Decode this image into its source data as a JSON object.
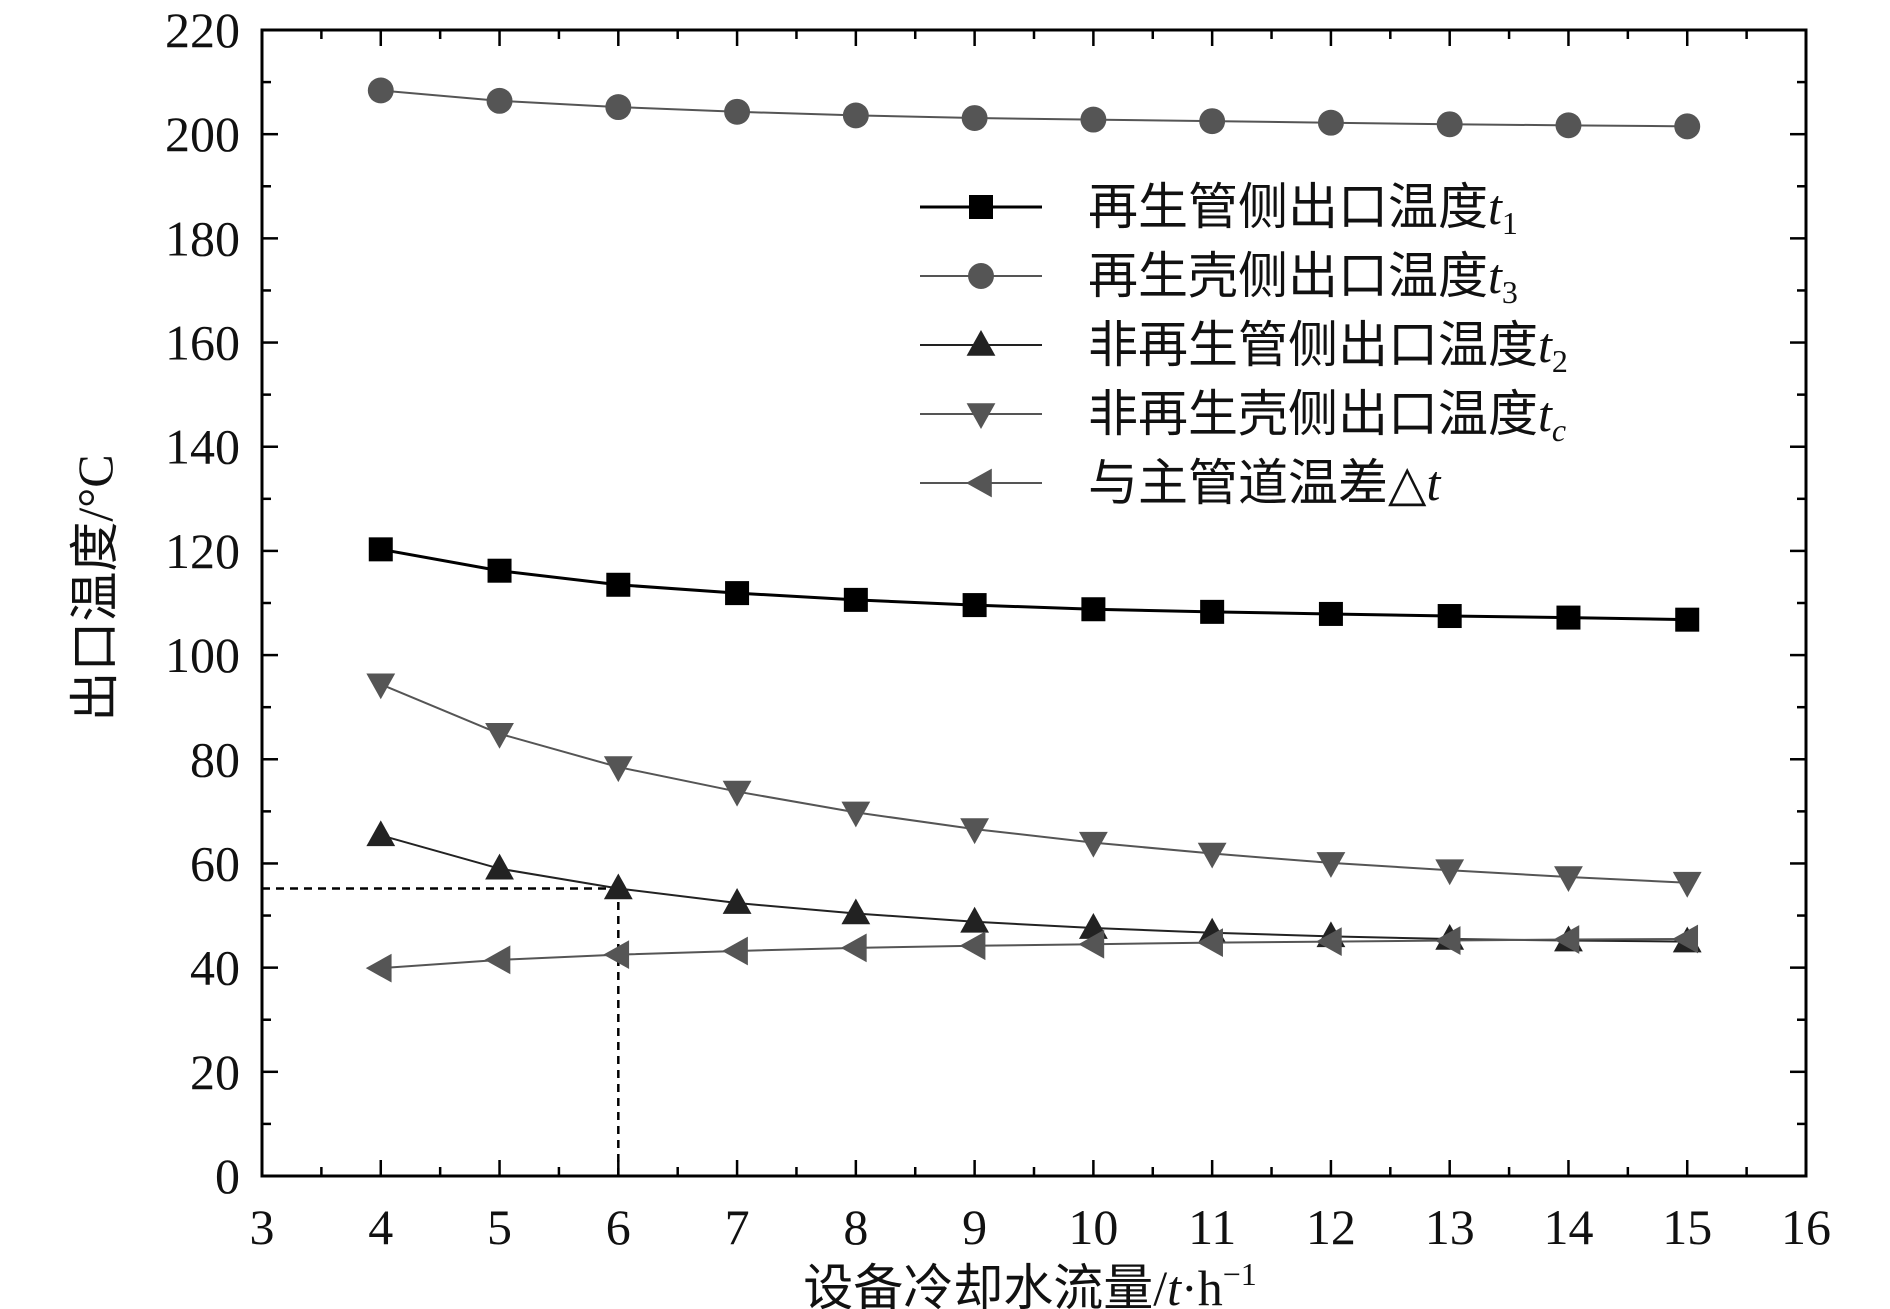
{
  "chart_data": {
    "type": "line",
    "xlabel": "设备冷却水流量/",
    "xlabel_italic": "t",
    "xlabel_suffix": "·h",
    "xlabel_sup": "−1",
    "ylabel": "出口温度/°C",
    "xlim": [
      3,
      16
    ],
    "ylim": [
      0,
      220
    ],
    "x_ticks": [
      3,
      4,
      5,
      6,
      7,
      8,
      9,
      10,
      11,
      12,
      13,
      14,
      15,
      16
    ],
    "y_ticks": [
      0,
      20,
      40,
      60,
      80,
      100,
      120,
      140,
      160,
      180,
      200,
      220
    ],
    "x": [
      4,
      5,
      6,
      7,
      8,
      9,
      10,
      11,
      12,
      13,
      14,
      15
    ],
    "series": [
      {
        "name": "再生管侧出口温度",
        "name_var": "t",
        "name_sub": "1",
        "marker": "square",
        "color": "#000000",
        "values": [
          120.3,
          116.2,
          113.5,
          111.9,
          110.6,
          109.6,
          108.8,
          108.3,
          107.9,
          107.5,
          107.2,
          106.8
        ]
      },
      {
        "name": "再生壳侧出口温度",
        "name_var": "t",
        "name_sub": "3",
        "marker": "circle",
        "color": "#555555",
        "values": [
          208.4,
          206.4,
          205.2,
          204.3,
          203.6,
          203.1,
          202.8,
          202.5,
          202.2,
          201.9,
          201.7,
          201.5
        ]
      },
      {
        "name": "非再生管侧出口温度",
        "name_var": "t",
        "name_sub": "2",
        "marker": "triangle-up",
        "color": "#222222",
        "values": [
          65.4,
          59.0,
          55.2,
          52.4,
          50.4,
          48.8,
          47.6,
          46.7,
          46.0,
          45.5,
          45.2,
          45.0
        ]
      },
      {
        "name": "非再生壳侧出口温度",
        "name_var": "t",
        "name_sub": "c",
        "marker": "triangle-down",
        "color": "#555555",
        "values": [
          94.4,
          84.9,
          78.5,
          73.8,
          69.8,
          66.6,
          64.0,
          61.9,
          60.1,
          58.7,
          57.4,
          56.3
        ]
      },
      {
        "name": "与主管道温差△",
        "name_var": "t",
        "name_sub": "",
        "marker": "triangle-left",
        "color": "#555555",
        "values": [
          39.9,
          41.5,
          42.5,
          43.2,
          43.8,
          44.2,
          44.5,
          44.8,
          45.0,
          45.2,
          45.4,
          45.5
        ]
      }
    ],
    "reference_lines": [
      {
        "style": "dashed",
        "from": [
          3,
          55.2
        ],
        "to": [
          6,
          55.2
        ]
      },
      {
        "style": "dashed",
        "from": [
          6,
          0
        ],
        "to": [
          6,
          55.2
        ]
      }
    ],
    "legend_position": "top-right",
    "grid": false
  }
}
